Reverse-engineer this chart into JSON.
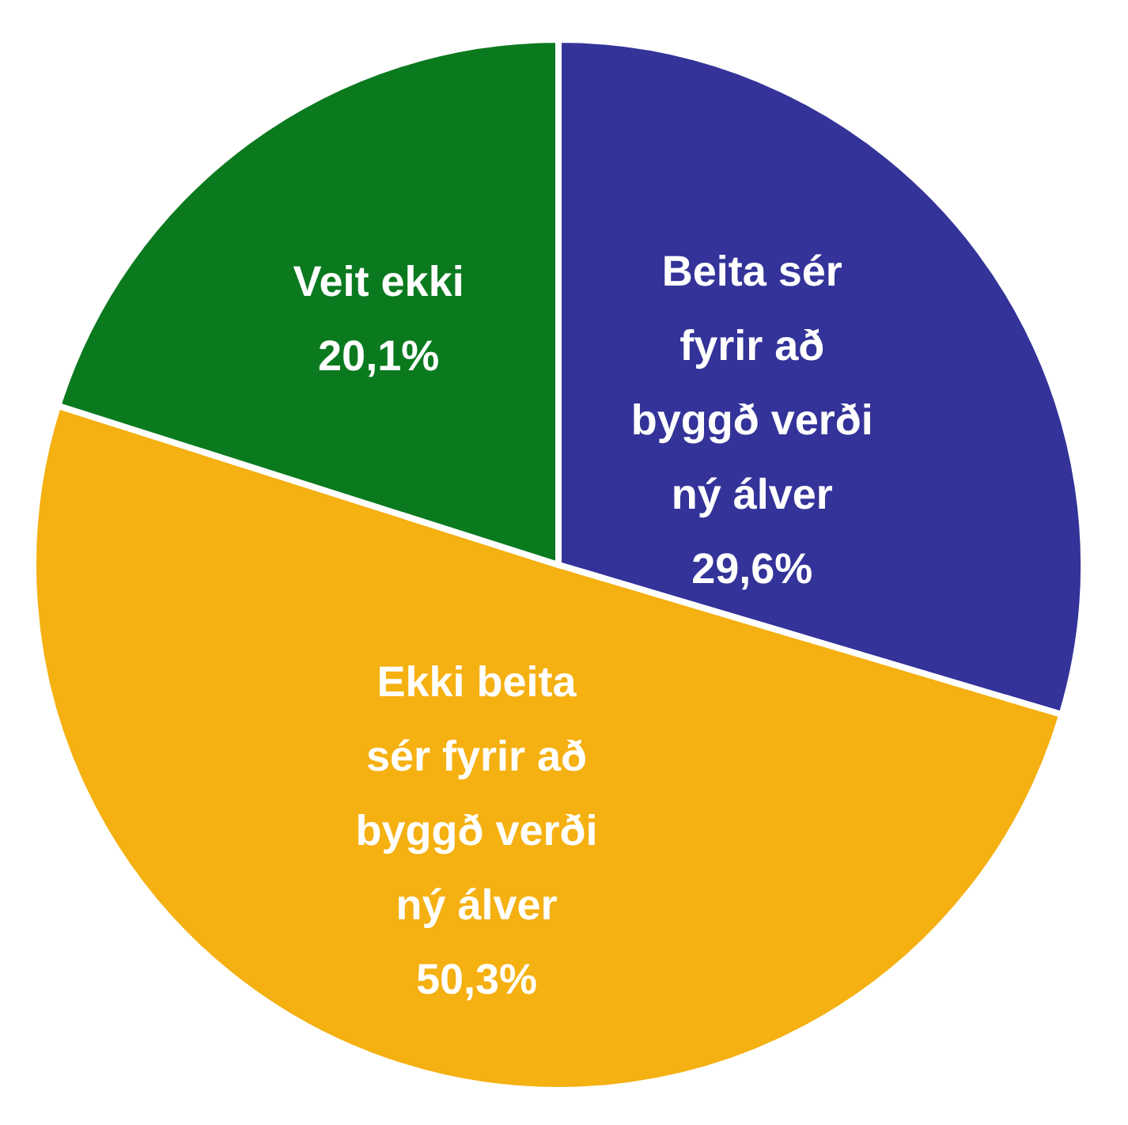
{
  "chart_data": {
    "type": "pie",
    "categories": [
      "Beita sér fyrir að byggð verði ný álver",
      "Ekki beita sér fyrir að byggð verði ný álver",
      "Veit ekki"
    ],
    "values": [
      29.6,
      50.3,
      20.1
    ],
    "value_labels": [
      "29,6%",
      "50,3%",
      "20,1%"
    ],
    "colors": [
      "#333399",
      "#f5b011",
      "#0b7a1f"
    ],
    "legend": false
  }
}
